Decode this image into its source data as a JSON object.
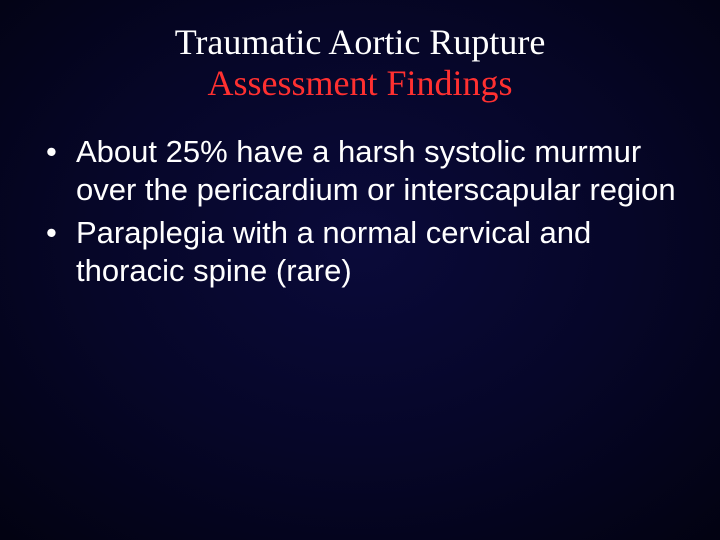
{
  "slide": {
    "title_line1": "Traumatic Aortic Rupture",
    "title_line2": "Assessment Findings",
    "bullets": [
      "About 25% have a harsh systolic murmur over the pericardium or interscapular region",
      "Paraplegia with a normal cervical and thoracic spine (rare)"
    ]
  },
  "style": {
    "background_gradient_center": "#0a0a3a",
    "background_gradient_mid": "#060628",
    "background_gradient_outer": "#000000",
    "title_color_line1": "#ffffff",
    "title_color_line2": "#ff3030",
    "body_text_color": "#ffffff",
    "title_fontsize": 36,
    "body_fontsize": 31,
    "title_font_family": "Times New Roman",
    "body_font_family": "Arial",
    "slide_width": 720,
    "slide_height": 540
  }
}
